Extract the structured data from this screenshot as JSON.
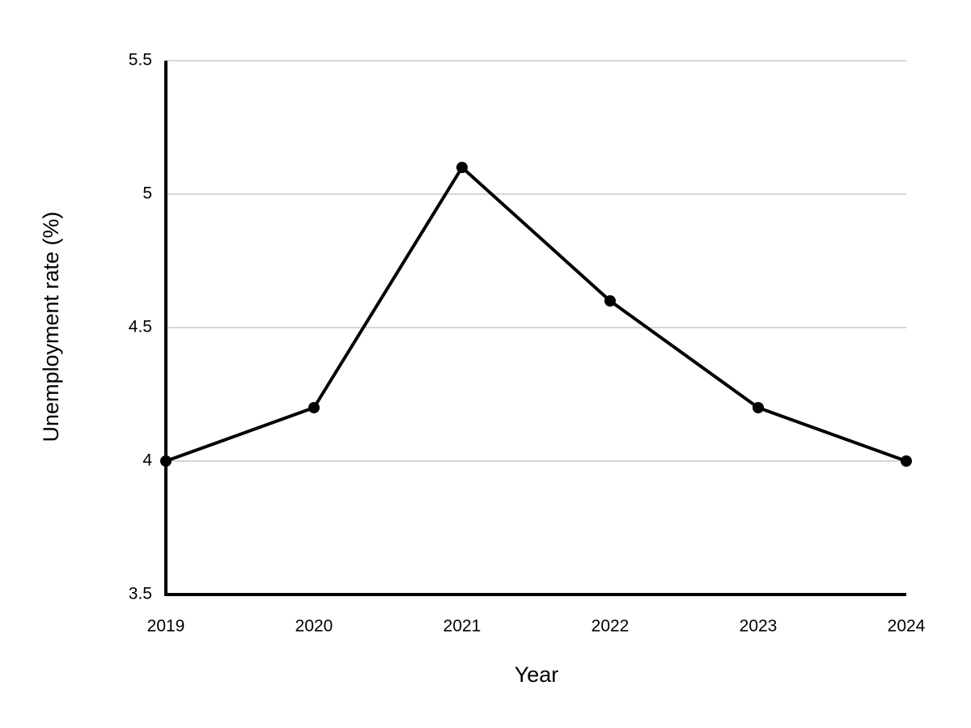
{
  "chart_data": {
    "type": "line",
    "x_label": "Year",
    "y_label": "Unemployment rate (%)",
    "categories": [
      "2019",
      "2020",
      "2021",
      "2022",
      "2023",
      "2024"
    ],
    "values": [
      4.0,
      4.2,
      5.1,
      4.6,
      4.2,
      4.0
    ],
    "color": "#000000",
    "ylim": [
      3.5,
      5.5
    ],
    "yticks": [
      3.5,
      4,
      4.5,
      5,
      5.5
    ],
    "grid": true
  }
}
